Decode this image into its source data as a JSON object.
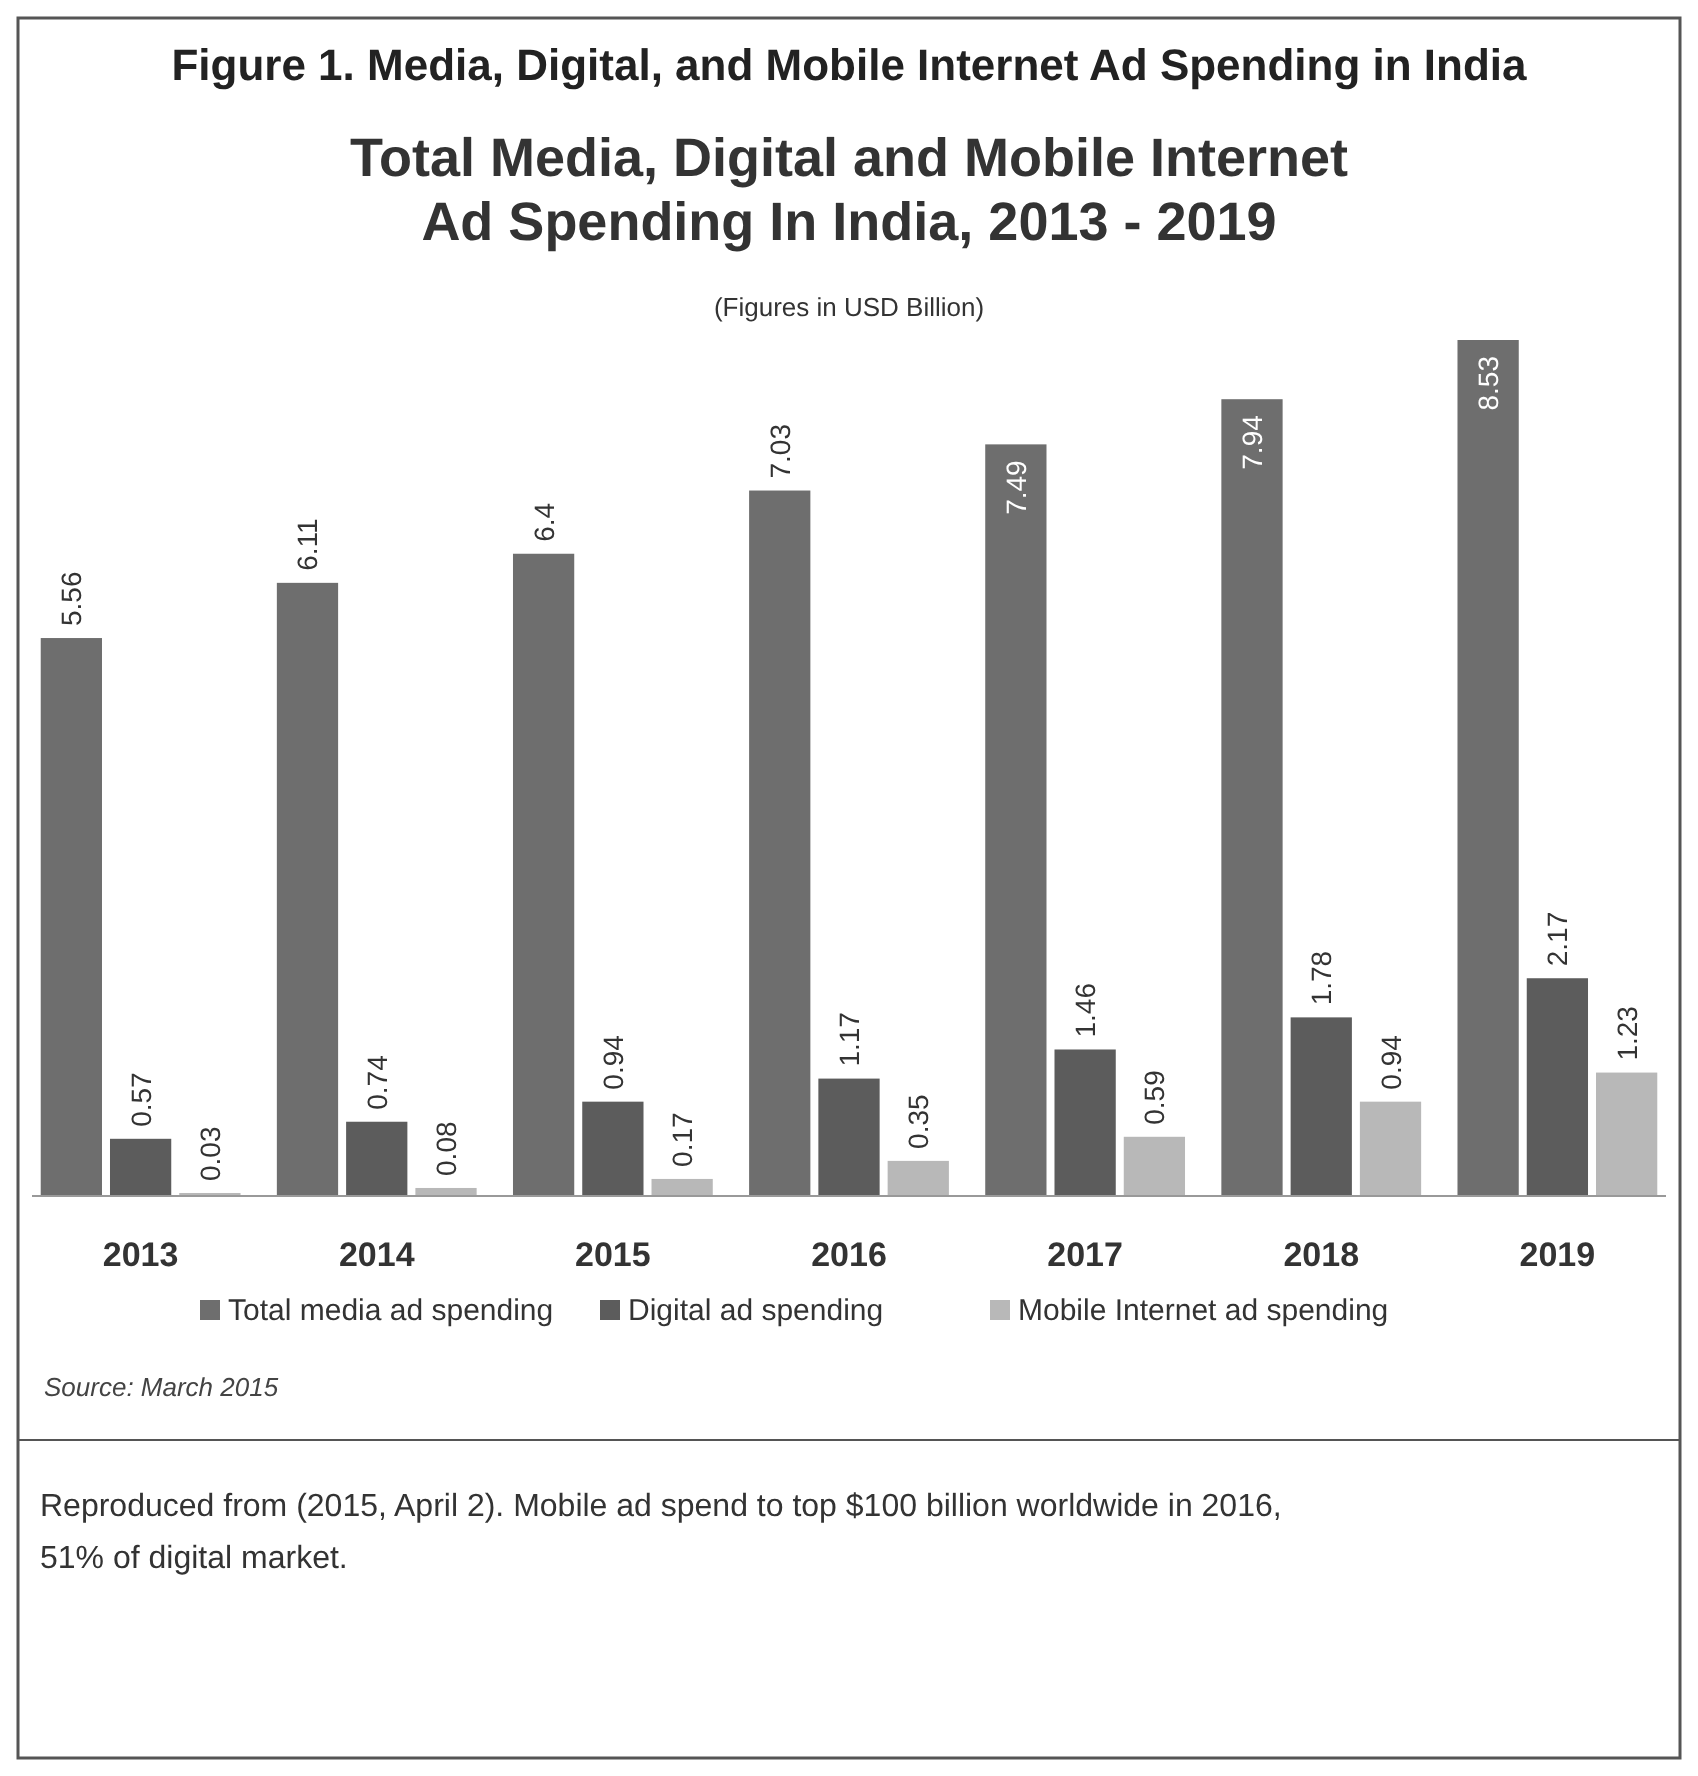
{
  "chart_data": {
    "type": "bar",
    "title": "Figure 1. Media, Digital, and Mobile Internet Ad Spending in India",
    "subtitle": "Total Media, Digital and Mobile Internet Ad Spending In India, 2013 - 2019",
    "categories": [
      "2013",
      "2014",
      "2015",
      "2016",
      "2017",
      "2018",
      "2019"
    ],
    "series": [
      {
        "name": "Total media ad spending",
        "color": "#6e6e6e",
        "values": [
          5.56,
          6.11,
          6.4,
          7.03,
          7.49,
          7.94,
          8.53
        ]
      },
      {
        "name": "Digital ad spending",
        "color": "#5c5c5c",
        "values": [
          0.57,
          0.74,
          0.94,
          1.17,
          1.46,
          1.78,
          2.17
        ]
      },
      {
        "name": "Mobile Internet ad spending",
        "color": "#b8b8b8",
        "values": [
          0.03,
          0.08,
          0.17,
          0.35,
          0.59,
          0.94,
          1.23
        ]
      }
    ],
    "data_labels": true,
    "legend": "bottom",
    "grid": false,
    "annotations": [
      "(Figures in USD Billion)",
      "Source: March 2015",
      "Reproduced from (2015, April 2). Mobile ad spend to top $100 billion worldwide in 2016, 51% of digital market."
    ]
  }
}
